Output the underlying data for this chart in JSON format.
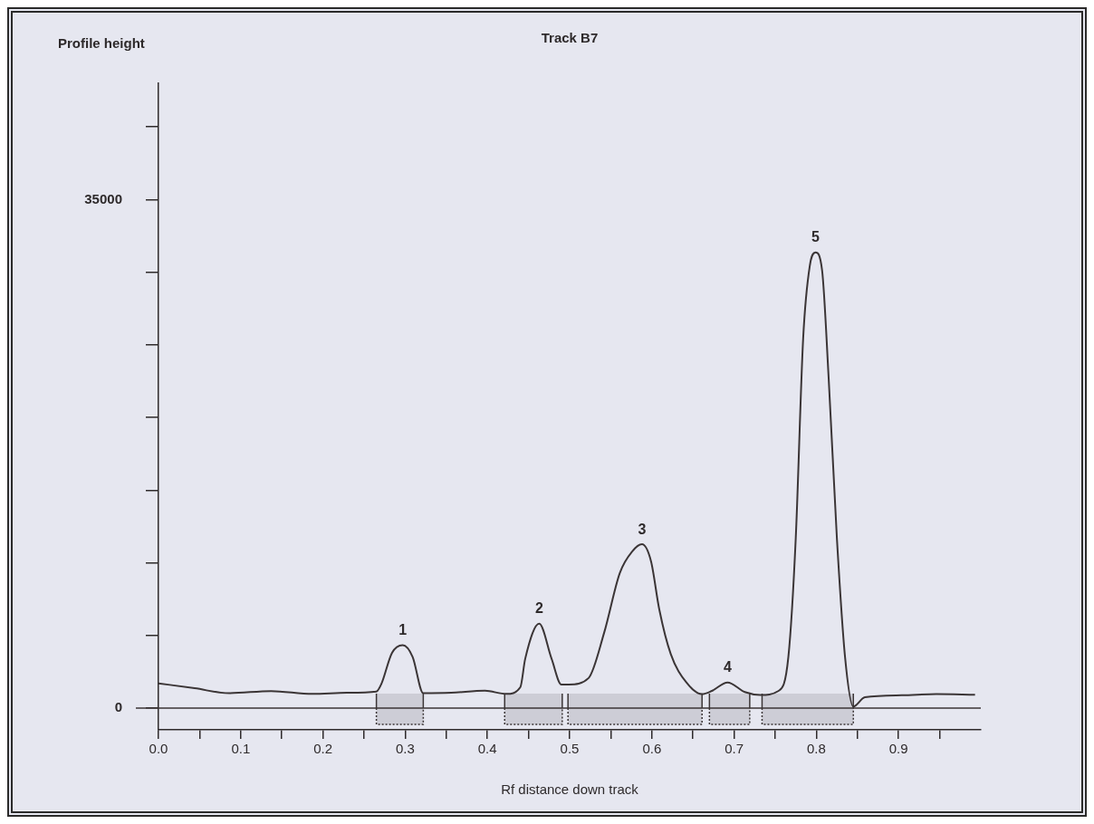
{
  "chart_data": {
    "type": "line",
    "title": "Track B7",
    "xlabel": "Rf distance down track",
    "ylabel": "Profile height",
    "series": [
      {
        "type": "line",
        "color": "#3b3536",
        "x": [
          0,
          0.044,
          0.086,
          0.137,
          0.187,
          0.229,
          0.265,
          0.271,
          0.284,
          0.297,
          0.309,
          0.322,
          0.356,
          0.397,
          0.423,
          0.44,
          0.446,
          0.463,
          0.478,
          0.49,
          0.499,
          0.523,
          0.542,
          0.561,
          0.576,
          0.588,
          0.599,
          0.609,
          0.623,
          0.642,
          0.661,
          0.673,
          0.692,
          0.713,
          0.732,
          0.754,
          0.766,
          0.775,
          0.784,
          0.792,
          0.799,
          0.807,
          0.815,
          0.825,
          0.835,
          0.845,
          0.859,
          0.904,
          0.946,
          0.993
        ],
        "values": [
          1700,
          1360,
          1020,
          1170,
          970,
          1050,
          1140,
          1650,
          3800,
          4330,
          3530,
          1020,
          1050,
          1190,
          970,
          1430,
          3400,
          5800,
          3400,
          1620,
          1620,
          2060,
          5190,
          9290,
          10770,
          11270,
          10090,
          6790,
          3710,
          1760,
          960,
          1180,
          1760,
          1100,
          900,
          1180,
          3520,
          11730,
          25470,
          30420,
          31360,
          30130,
          22700,
          11700,
          3460,
          100,
          740,
          880,
          960,
          910
        ]
      }
    ],
    "xlim": [
      0,
      1
    ],
    "xticks": [
      {
        "value": 0,
        "label": "0.0"
      },
      {
        "value": 0.05,
        "label": null
      },
      0.1,
      {
        "value": 0.15,
        "label": null
      },
      0.2,
      {
        "value": 0.25,
        "label": null
      },
      0.3,
      {
        "value": 0.35,
        "label": null
      },
      0.4,
      {
        "value": 0.45,
        "label": null
      },
      0.5,
      {
        "value": 0.55,
        "label": null
      },
      0.6,
      {
        "value": 0.65,
        "label": null
      },
      0.7,
      {
        "value": 0.75,
        "label": null
      },
      0.8,
      {
        "value": 0.85,
        "label": null
      },
      0.9,
      {
        "value": 0.95,
        "label": null
      }
    ],
    "ylim": [
      -1500,
      43000
    ],
    "yticks": [
      0,
      {
        "value": 5000,
        "label": null
      },
      {
        "value": 10000,
        "label": null
      },
      {
        "value": 15000,
        "label": null
      },
      {
        "value": 20000,
        "label": null
      },
      {
        "value": 25000,
        "label": null
      },
      {
        "value": 30000,
        "label": null
      },
      35000,
      {
        "value": 40000,
        "label": null
      }
    ],
    "ref_lines": [
      {
        "axis": "y",
        "value": 0,
        "color": "#3b3536"
      }
    ],
    "bands": [
      {
        "axis": "x",
        "from": 0.265,
        "to": 0.322,
        "color": "#3b3536"
      },
      {
        "axis": "x",
        "from": 0.421,
        "to": 0.491,
        "color": "#3b3536"
      },
      {
        "axis": "x",
        "from": 0.498,
        "to": 0.661,
        "color": "#3b3536"
      },
      {
        "axis": "x",
        "from": 0.67,
        "to": 0.719,
        "color": "#3b3536"
      },
      {
        "axis": "x",
        "from": 0.734,
        "to": 0.845,
        "color": "#3b3536"
      }
    ],
    "annotations": [
      {
        "text": "1",
        "x": 0.297,
        "y": 4330
      },
      {
        "text": "2",
        "x": 0.463,
        "y": 5800
      },
      {
        "text": "3",
        "x": 0.588,
        "y": 11270
      },
      {
        "text": "4",
        "x": 0.692,
        "y": 1760
      },
      {
        "text": "5",
        "x": 0.799,
        "y": 31360
      }
    ],
    "marker": "none",
    "line_style": "solid"
  }
}
